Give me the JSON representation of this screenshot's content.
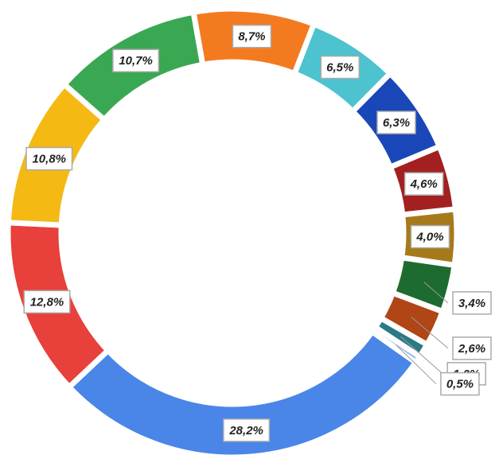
{
  "chart_data": {
    "type": "donut",
    "values": [
      8.7,
      6.5,
      6.3,
      4.6,
      4.0,
      3.4,
      2.6,
      1.0,
      0.5,
      28.2,
      12.8,
      10.8,
      10.7
    ],
    "value_labels": [
      "8,7%",
      "6,5%",
      "6,3%",
      "4,6%",
      "4,0%",
      "3,4%",
      "2,6%",
      "1,0%",
      "0,5%",
      "28,2%",
      "12,8%",
      "10,8%",
      "10,7%"
    ],
    "colors": [
      "#f47a20",
      "#4cc3cf",
      "#1a47b8",
      "#a32020",
      "#a67a1a",
      "#1e6b30",
      "#b04515",
      "#2a7a85",
      "#7aa7e8",
      "#4a86e8",
      "#e8403a",
      "#f5b914",
      "#3aa852"
    ]
  }
}
